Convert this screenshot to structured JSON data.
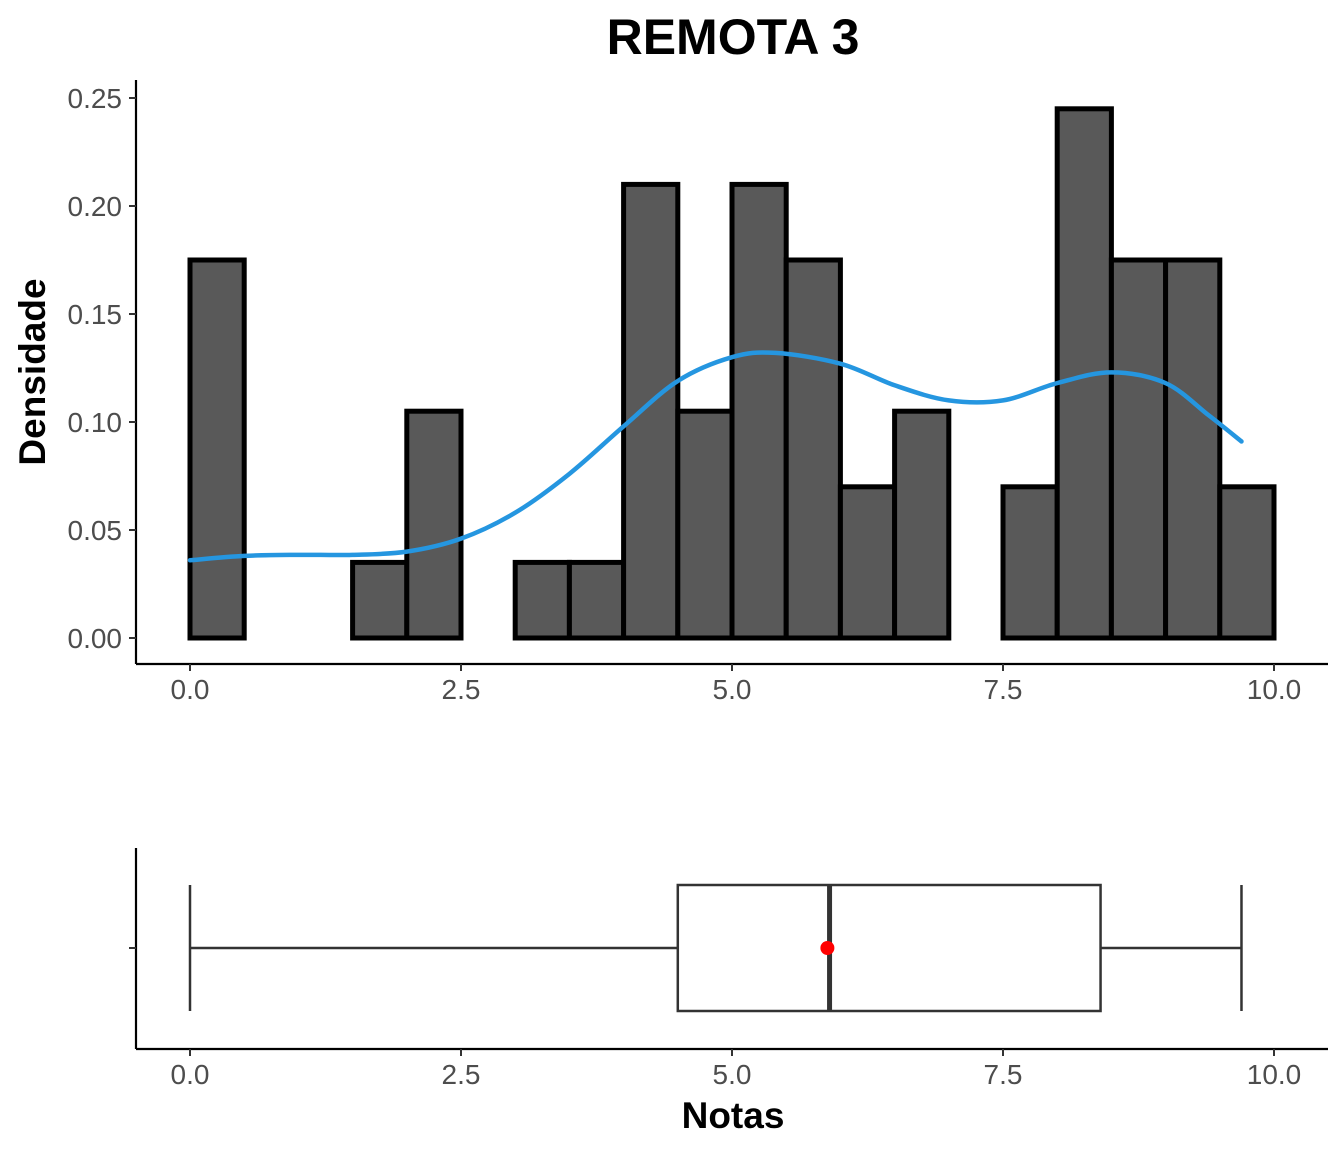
{
  "title": "REMOTA 3",
  "colors": {
    "bar_fill": "#595959",
    "bar_stroke": "#000000",
    "density_line": "#2596e0",
    "mean_point": "#ff0000",
    "box_line": "#333333"
  },
  "chart_data": [
    {
      "type": "histogram",
      "ylabel": "Densidade",
      "xlabel": "",
      "xlim": [
        0,
        10
      ],
      "ylim": [
        0,
        0.25
      ],
      "x_ticks": [
        "0.0",
        "2.5",
        "5.0",
        "7.5",
        "10.0"
      ],
      "y_ticks": [
        "0.00",
        "0.05",
        "0.10",
        "0.15",
        "0.20",
        "0.25"
      ],
      "bin_width": 0.5,
      "bins_start": [
        0,
        0.5,
        1,
        1.5,
        2,
        2.5,
        3,
        3.5,
        4,
        4.5,
        5,
        5.5,
        6,
        6.5,
        7,
        7.5,
        8,
        8.5,
        9,
        9.5
      ],
      "values": [
        0.175,
        0,
        0,
        0.035,
        0.105,
        0,
        0.035,
        0.035,
        0.21,
        0.105,
        0.21,
        0.175,
        0.07,
        0.105,
        0,
        0.07,
        0.245,
        0.175,
        0.175,
        0.07
      ],
      "density_curve": {
        "x": [
          0,
          0.5,
          1,
          1.5,
          2,
          2.5,
          3,
          3.5,
          4,
          4.5,
          5,
          5.4,
          6,
          6.5,
          7,
          7.5,
          8,
          8.5,
          9,
          9.4,
          9.7
        ],
        "y": [
          0.036,
          0.038,
          0.0385,
          0.0385,
          0.04,
          0.046,
          0.058,
          0.076,
          0.098,
          0.119,
          0.13,
          0.132,
          0.127,
          0.117,
          0.11,
          0.11,
          0.118,
          0.123,
          0.118,
          0.103,
          0.091
        ]
      },
      "grid": false
    },
    {
      "type": "boxplot",
      "xlabel": "Notas",
      "xlim": [
        0,
        10
      ],
      "x_ticks": [
        "0.0",
        "2.5",
        "5.0",
        "7.5",
        "10.0"
      ],
      "min": 0,
      "q1": 4.5,
      "median": 5.9,
      "q3": 8.4,
      "max": 9.7,
      "mean": 5.88,
      "grid": false
    }
  ]
}
